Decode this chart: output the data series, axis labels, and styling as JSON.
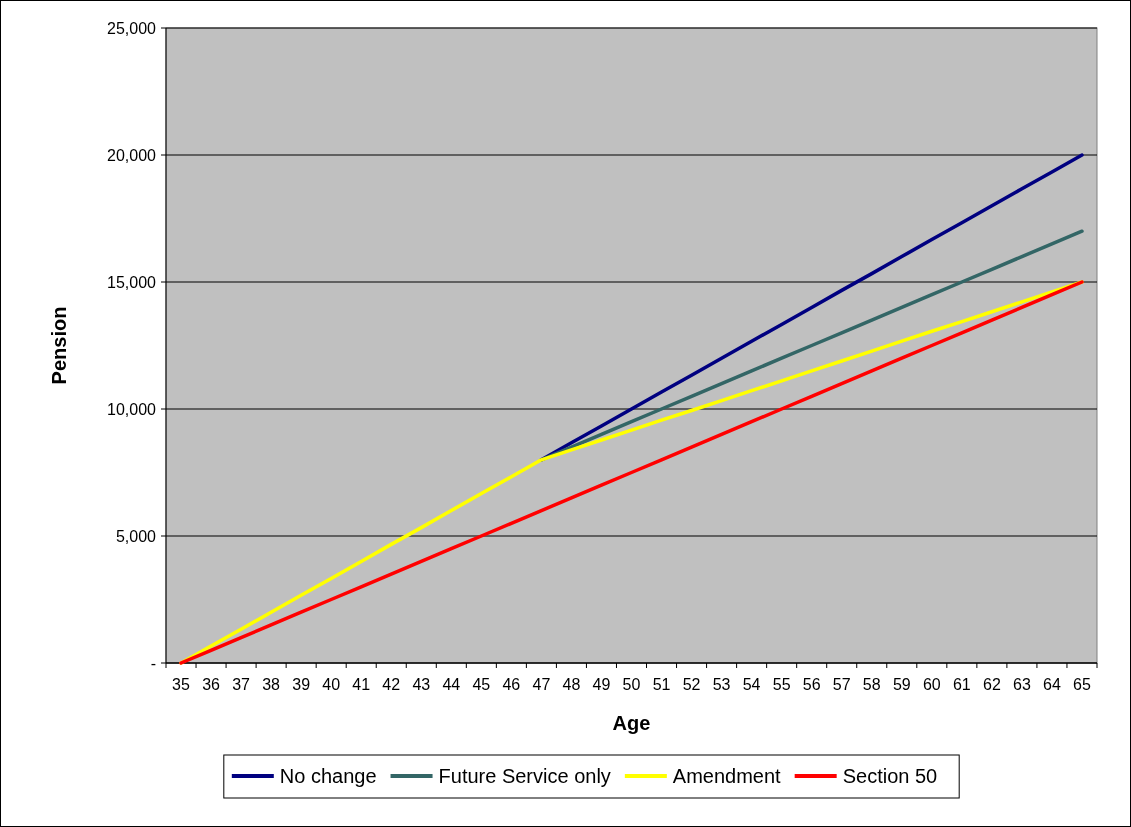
{
  "chart_data": {
    "type": "line",
    "xlabel": "Age",
    "ylabel": "Pension",
    "categories": [
      "35",
      "36",
      "37",
      "38",
      "39",
      "40",
      "41",
      "42",
      "43",
      "44",
      "45",
      "46",
      "47",
      "48",
      "49",
      "50",
      "51",
      "52",
      "53",
      "54",
      "55",
      "56",
      "57",
      "58",
      "59",
      "60",
      "61",
      "62",
      "63",
      "64",
      "65"
    ],
    "series": [
      {
        "name": "No change",
        "color": "#000080",
        "values": [
          null,
          null,
          null,
          null,
          null,
          null,
          null,
          null,
          null,
          null,
          null,
          null,
          8000,
          8670,
          9330,
          10000,
          10670,
          11330,
          12000,
          12670,
          13330,
          14000,
          14670,
          15330,
          16000,
          16670,
          17330,
          18000,
          18670,
          19330,
          20000
        ]
      },
      {
        "name": "Future Service only",
        "color": "#336666",
        "values": [
          null,
          null,
          null,
          null,
          null,
          null,
          null,
          null,
          null,
          null,
          null,
          null,
          8000,
          8500,
          9000,
          9500,
          10000,
          10500,
          11000,
          11500,
          12000,
          12500,
          13000,
          13500,
          14000,
          14500,
          15000,
          15500,
          16000,
          16500,
          17000
        ]
      },
      {
        "name": "Amendment",
        "color": "#ffff00",
        "values": [
          0,
          670,
          1330,
          2000,
          2670,
          3330,
          4000,
          4670,
          5330,
          6000,
          6670,
          7330,
          8000,
          8390,
          8780,
          9170,
          9560,
          9940,
          10330,
          10720,
          11110,
          11500,
          11890,
          12280,
          12670,
          13060,
          13440,
          13830,
          14220,
          14610,
          15000
        ]
      },
      {
        "name": "Section 50",
        "color": "#ff0000",
        "values": [
          0,
          500,
          1000,
          1500,
          2000,
          2500,
          3000,
          3500,
          4000,
          4500,
          5000,
          5500,
          6000,
          6500,
          7000,
          7500,
          8000,
          8500,
          9000,
          9500,
          10000,
          10500,
          11000,
          11500,
          12000,
          12500,
          13000,
          13500,
          14000,
          14500,
          15000
        ]
      }
    ],
    "ylim": [
      0,
      25000
    ],
    "yticks": [
      {
        "value": 0,
        "label": "-"
      },
      {
        "value": 5000,
        "label": "5,000"
      },
      {
        "value": 10000,
        "label": "10,000"
      },
      {
        "value": 15000,
        "label": "15,000"
      },
      {
        "value": 20000,
        "label": "20,000"
      },
      {
        "value": 25000,
        "label": "25,000"
      }
    ],
    "grid": "y",
    "legend": "bottom",
    "marker": "none",
    "line_style": "solid"
  }
}
